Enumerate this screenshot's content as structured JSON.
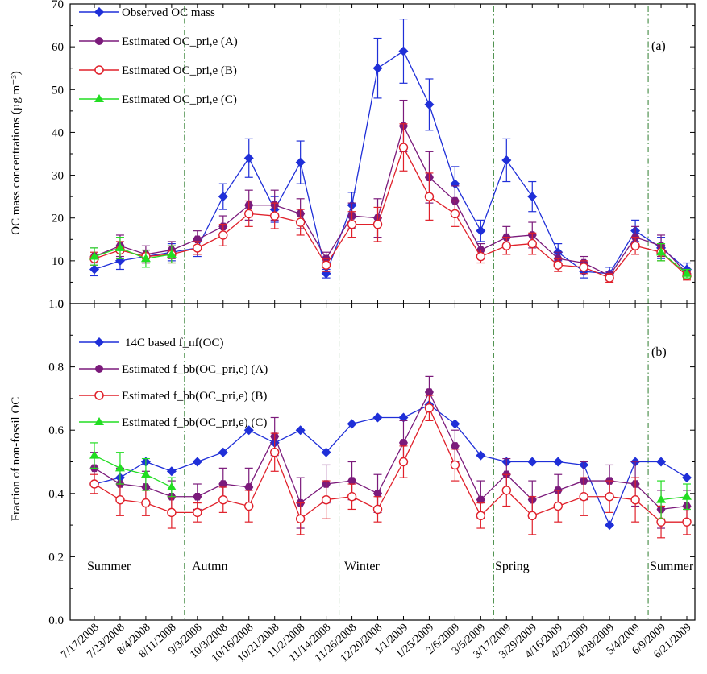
{
  "chart_data": [
    {
      "type": "line",
      "panel_label": "(a)",
      "ylabel": "OC mass concentrations (µg m⁻³)",
      "ylim": [
        0,
        70
      ],
      "yticks": [
        0,
        10,
        20,
        30,
        40,
        50,
        60,
        70
      ],
      "legend_position": "top-left",
      "series": [
        {
          "name": "Observed OC mass",
          "color": "#1f2fd8",
          "marker": "diamond",
          "values": [
            8,
            10,
            11,
            12,
            13,
            25,
            34,
            22,
            33,
            7,
            23,
            55,
            59,
            46.5,
            28,
            17,
            33.5,
            25,
            12,
            7.5,
            7,
            17,
            13,
            8
          ],
          "err": [
            1.5,
            2,
            1.5,
            2,
            2,
            3,
            4.5,
            3,
            5,
            1,
            3,
            7,
            7.5,
            6,
            4,
            2.5,
            5,
            3.5,
            2,
            1.5,
            1.5,
            2.5,
            2.5,
            1.5
          ]
        },
        {
          "name": "Estimated OC_pri,e (A)",
          "color": "#7b1a7b",
          "marker": "hexagon",
          "values": [
            11,
            13.5,
            11.5,
            12.5,
            15,
            18,
            23,
            23,
            21,
            10.5,
            20.5,
            20,
            41.5,
            29.5,
            24,
            12.5,
            15.5,
            16,
            10.5,
            9.5,
            6.5,
            15.5,
            13.5,
            7
          ],
          "err": [
            2,
            2.5,
            2,
            2,
            2,
            2.5,
            3.5,
            3.5,
            3.5,
            1.5,
            3,
            4.5,
            6,
            6,
            3.5,
            1.5,
            2.5,
            3,
            1.5,
            1.5,
            1,
            2.5,
            2.5,
            1
          ]
        },
        {
          "name": "Estimated OC_pri,e (B)",
          "color": "#e0202a",
          "marker": "circle-open",
          "values": [
            10.5,
            12.5,
            11,
            11.5,
            13,
            16,
            21,
            20.5,
            19,
            9,
            18.5,
            18.5,
            36.5,
            25,
            21,
            11,
            13.5,
            14,
            9,
            8.5,
            6,
            13.5,
            12,
            6.5
          ],
          "err": [
            1.5,
            2,
            1.5,
            2,
            1.5,
            2.5,
            3,
            3,
            3,
            1.5,
            3,
            4,
            5.5,
            5.5,
            3,
            1.5,
            2,
            2.5,
            1.5,
            1.5,
            1,
            2,
            2,
            1
          ]
        },
        {
          "name": "Estimated OC_pri,e (C)",
          "color": "#22dd22",
          "marker": "triangle",
          "values": [
            11,
            13,
            10.5,
            11.5,
            null,
            null,
            null,
            null,
            null,
            null,
            null,
            null,
            null,
            null,
            null,
            null,
            null,
            null,
            null,
            null,
            null,
            null,
            12,
            7
          ],
          "err": [
            2,
            2.5,
            2,
            2,
            null,
            null,
            null,
            null,
            null,
            null,
            null,
            null,
            null,
            null,
            null,
            null,
            null,
            null,
            null,
            null,
            null,
            null,
            2,
            1
          ]
        }
      ]
    },
    {
      "type": "line",
      "panel_label": "(b)",
      "ylabel": "Fraction of non-fossil OC",
      "ylim": [
        0.0,
        1.0
      ],
      "yticks": [
        "0.0",
        "0.2",
        "0.4",
        "0.6",
        "0.8",
        "1.0"
      ],
      "legend_position": "top-left",
      "seasons": [
        "Summer",
        "Autmn",
        "Winter",
        "Spring",
        "Summer"
      ],
      "series": [
        {
          "name": "14C based f_nf(OC)",
          "color": "#1f2fd8",
          "marker": "diamond",
          "values": [
            0.43,
            0.45,
            0.5,
            0.47,
            0.5,
            0.53,
            0.6,
            0.56,
            0.6,
            0.53,
            0.62,
            0.64,
            0.64,
            0.68,
            0.62,
            0.52,
            0.5,
            0.5,
            0.5,
            0.49,
            0.3,
            0.5,
            0.5,
            0.45
          ],
          "err": [
            null,
            null,
            null,
            null,
            null,
            null,
            null,
            null,
            null,
            null,
            null,
            null,
            null,
            null,
            null,
            null,
            null,
            null,
            null,
            null,
            null,
            null,
            null,
            null
          ]
        },
        {
          "name": "Estimated f_bb(OC_pri,e) (A)",
          "color": "#7b1a7b",
          "marker": "hexagon",
          "values": [
            0.48,
            0.43,
            0.42,
            0.39,
            0.39,
            0.43,
            0.42,
            0.58,
            0.37,
            0.43,
            0.44,
            0.4,
            0.56,
            0.72,
            0.55,
            0.38,
            0.46,
            0.38,
            0.41,
            0.44,
            0.44,
            0.43,
            0.35,
            0.36
          ],
          "err": [
            0.05,
            0.05,
            0.05,
            0.05,
            0.04,
            0.05,
            0.06,
            0.06,
            0.08,
            0.06,
            0.06,
            0.06,
            0.07,
            0.05,
            0.05,
            0.06,
            0.05,
            0.06,
            0.05,
            0.06,
            0.05,
            0.07,
            0.06,
            0.05
          ]
        },
        {
          "name": "Estimated f_bb(OC_pri,e) (B)",
          "color": "#e0202a",
          "marker": "circle-open",
          "values": [
            0.43,
            0.38,
            0.37,
            0.34,
            0.34,
            0.38,
            0.36,
            0.53,
            0.32,
            0.38,
            0.39,
            0.35,
            0.5,
            0.67,
            0.49,
            0.33,
            0.41,
            0.33,
            0.36,
            0.39,
            0.39,
            0.38,
            0.31,
            0.31
          ],
          "err": [
            0.03,
            0.05,
            0.04,
            0.05,
            0.03,
            0.04,
            0.05,
            0.06,
            0.05,
            0.06,
            0.04,
            0.04,
            0.05,
            0.04,
            0.05,
            0.04,
            0.05,
            0.06,
            0.05,
            0.06,
            0.05,
            0.07,
            0.05,
            0.04
          ]
        },
        {
          "name": "Estimated f_bb(OC_pri,e) (C)",
          "color": "#22dd22",
          "marker": "triangle",
          "values": [
            0.52,
            0.48,
            0.46,
            0.42,
            null,
            null,
            null,
            null,
            null,
            null,
            null,
            null,
            null,
            null,
            null,
            null,
            null,
            null,
            null,
            null,
            null,
            null,
            0.38,
            0.39
          ],
          "err": [
            0.04,
            0.05,
            0.05,
            0.03,
            null,
            null,
            null,
            null,
            null,
            null,
            null,
            null,
            null,
            null,
            null,
            null,
            null,
            null,
            null,
            null,
            null,
            null,
            0.06,
            0.04
          ]
        }
      ]
    }
  ],
  "x": [
    "7/17/2008",
    "7/23/2008",
    "8/4/2008",
    "8/11/2008",
    "9/3/2008",
    "10/3/2008",
    "10/16/2008",
    "10/21/2008",
    "11/2/2008",
    "11/14/2008",
    "11/26/2008",
    "12/20/2008",
    "1/1/2009",
    "1/25/2009",
    "2/6/2009",
    "3/5/2009",
    "3/17/2009",
    "3/29/2009",
    "4/16/2009",
    "4/22/2009",
    "4/28/2009",
    "5/4/2009",
    "6/9/2009",
    "6/21/2009"
  ]
}
